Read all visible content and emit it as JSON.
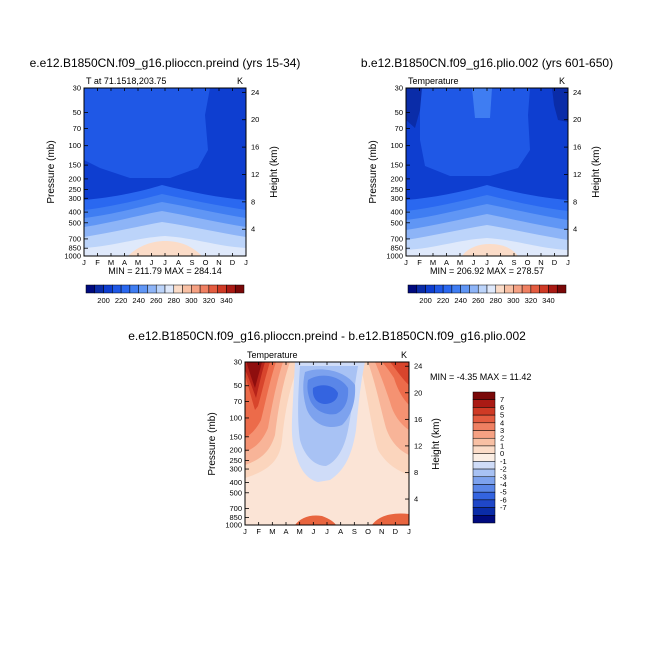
{
  "chart_data": [
    {
      "type": "contour",
      "title": "e.e12.B1850CN.f09_g16.plioccn.preind (yrs 15-34)",
      "subtitle_left": "T at 71.1518,203.75",
      "subtitle_right": "K",
      "xlabel": "",
      "ylabel": "Pressure (mb)",
      "y2label": "Height (km)",
      "x_ticks": [
        "J",
        "F",
        "M",
        "A",
        "M",
        "J",
        "J",
        "A",
        "S",
        "O",
        "N",
        "D",
        "J"
      ],
      "y_ticks": [
        "30",
        "50",
        "70",
        "100",
        "150",
        "200",
        "250",
        "300",
        "400",
        "500",
        "700",
        "850",
        "1000"
      ],
      "y2_ticks": [
        "24",
        "20",
        "16",
        "12",
        "8",
        "4"
      ],
      "min_max_text": "MIN = 211.79 MAX = 284.14",
      "colorbar_labels": [
        "200",
        "220",
        "240",
        "260",
        "280",
        "300",
        "320",
        "340"
      ]
    },
    {
      "type": "contour",
      "title": "b.e12.B1850CN.f09_g16.plio.002 (yrs 601-650)",
      "subtitle_left": "Temperature",
      "subtitle_right": "K",
      "xlabel": "",
      "ylabel": "Pressure (mb)",
      "y2label": "Height (km)",
      "x_ticks": [
        "J",
        "F",
        "M",
        "A",
        "M",
        "J",
        "J",
        "A",
        "S",
        "O",
        "N",
        "D",
        "J"
      ],
      "y_ticks": [
        "30",
        "50",
        "70",
        "100",
        "150",
        "200",
        "250",
        "300",
        "400",
        "500",
        "700",
        "850",
        "1000"
      ],
      "y2_ticks": [
        "24",
        "20",
        "16",
        "12",
        "8",
        "4"
      ],
      "min_max_text": "MIN = 206.92 MAX = 278.57",
      "colorbar_labels": [
        "200",
        "220",
        "240",
        "260",
        "280",
        "300",
        "320",
        "340"
      ]
    },
    {
      "type": "contour",
      "title": "e.e12.B1850CN.f09_g16.plioccn.preind - b.e12.B1850CN.f09_g16.plio.002",
      "subtitle_left": "Temperature",
      "subtitle_right": "K",
      "xlabel": "",
      "ylabel": "Pressure (mb)",
      "y2label": "Height (km)",
      "x_ticks": [
        "J",
        "F",
        "M",
        "A",
        "M",
        "J",
        "J",
        "A",
        "S",
        "O",
        "N",
        "D",
        "J"
      ],
      "y_ticks": [
        "30",
        "50",
        "70",
        "100",
        "150",
        "200",
        "250",
        "300",
        "400",
        "500",
        "700",
        "850",
        "1000"
      ],
      "y2_ticks": [
        "24",
        "20",
        "16",
        "12",
        "8",
        "4"
      ],
      "min_max_text": "MIN = -4.35 MAX = 11.42",
      "colorbar_labels": [
        "7",
        "6",
        "5",
        "4",
        "3",
        "2",
        "1",
        "0",
        "-1",
        "-2",
        "-3",
        "-4",
        "-5",
        "-6",
        "-7"
      ]
    }
  ]
}
